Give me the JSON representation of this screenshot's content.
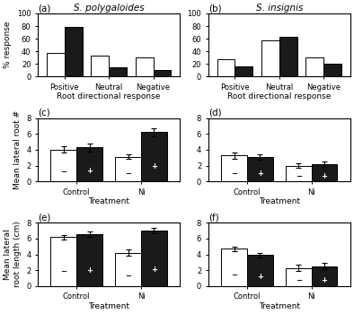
{
  "chart_data": [
    {
      "type": "bar",
      "title": "S. polygaloides",
      "annotations": [
        "(a)"
      ],
      "x_label": "Root directional response",
      "y_label": "% response",
      "categories": [
        "Positive",
        "Neutral",
        "Negative"
      ],
      "series": [
        {
          "color": "#FFFFFF",
          "values": [
            38,
            33,
            30
          ]
        },
        {
          "color": "#1a1a1a",
          "values": [
            78,
            15,
            10
          ]
        }
      ],
      "ylim": [
        0,
        100
      ],
      "yticks": [
        0,
        20,
        40,
        60,
        80,
        100
      ],
      "grid": false
    },
    {
      "type": "bar",
      "title": "S. insignis",
      "annotations": [
        "(b)"
      ],
      "x_label": "Root directional response",
      "categories": [
        "Positive",
        "Neutral",
        "Negative"
      ],
      "series": [
        {
          "color": "#FFFFFF",
          "values": [
            27,
            58,
            30
          ]
        },
        {
          "color": "#1a1a1a",
          "values": [
            16,
            63,
            20
          ]
        }
      ],
      "ylim": [
        0,
        100
      ],
      "yticks": [
        0,
        20,
        40,
        60,
        80,
        100
      ],
      "grid": false
    },
    {
      "type": "bar",
      "annotations": [
        "(c)"
      ],
      "x_label": "Treatment",
      "y_label": "Mean lateral root #",
      "categories": [
        "Control",
        "Ni"
      ],
      "series": [
        {
          "name": "−",
          "color": "#FFFFFF",
          "values": [
            4.0,
            3.1
          ],
          "errors": [
            0.4,
            0.3
          ]
        },
        {
          "name": "+",
          "color": "#1a1a1a",
          "values": [
            4.3,
            6.2
          ],
          "errors": [
            0.5,
            0.5
          ]
        }
      ],
      "ylim": [
        0,
        8
      ],
      "yticks": [
        0,
        2,
        4,
        6,
        8
      ],
      "grid": false
    },
    {
      "type": "bar",
      "annotations": [
        "(d)"
      ],
      "x_label": "Treatment",
      "categories": [
        "Control",
        "Ni"
      ],
      "series": [
        {
          "name": "−",
          "color": "#FFFFFF",
          "values": [
            3.3,
            2.0
          ],
          "errors": [
            0.4,
            0.3
          ]
        },
        {
          "name": "+",
          "color": "#1a1a1a",
          "values": [
            3.1,
            2.2
          ],
          "errors": [
            0.35,
            0.35
          ]
        }
      ],
      "ylim": [
        0,
        8
      ],
      "yticks": [
        0,
        2,
        4,
        6,
        8
      ],
      "grid": false
    },
    {
      "type": "bar",
      "annotations": [
        "(e)"
      ],
      "x_label": "Treatment",
      "y_label": "Mean lateral\nroot length (cm)",
      "categories": [
        "Control",
        "Ni"
      ],
      "series": [
        {
          "name": "−",
          "color": "#FFFFFF",
          "values": [
            6.2,
            4.2
          ],
          "errors": [
            0.3,
            0.4
          ]
        },
        {
          "name": "+",
          "color": "#1a1a1a",
          "values": [
            6.6,
            7.0
          ],
          "errors": [
            0.35,
            0.35
          ]
        }
      ],
      "ylim": [
        0,
        8
      ],
      "yticks": [
        0,
        2,
        4,
        6,
        8
      ],
      "grid": false
    },
    {
      "type": "bar",
      "annotations": [
        "(f)"
      ],
      "x_label": "Treatment",
      "categories": [
        "Control",
        "Ni"
      ],
      "series": [
        {
          "name": "−",
          "color": "#FFFFFF",
          "values": [
            4.7,
            2.3
          ],
          "errors": [
            0.3,
            0.4
          ]
        },
        {
          "name": "+",
          "color": "#1a1a1a",
          "values": [
            3.9,
            2.5
          ],
          "errors": [
            0.3,
            0.4
          ]
        }
      ],
      "ylim": [
        0,
        8
      ],
      "yticks": [
        0,
        2,
        4,
        6,
        8
      ],
      "grid": false
    }
  ]
}
